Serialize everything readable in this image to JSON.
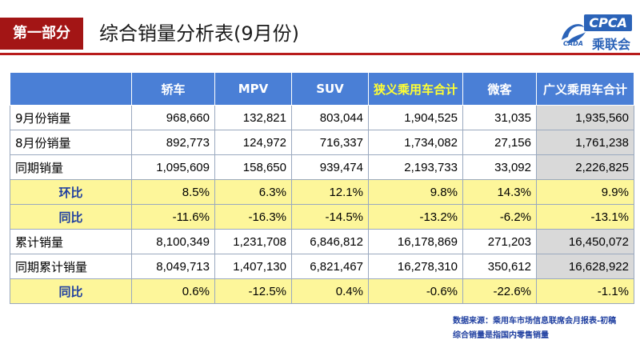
{
  "header": {
    "section": "第一部分",
    "title": "综合销量分析表(9月份)",
    "logo_text": "CPCA",
    "logo_subtext": "乘联会",
    "logo_mini": "CADA"
  },
  "table": {
    "columns": [
      "",
      "轿车",
      "MPV",
      "SUV",
      "狭义乘用车合计",
      "微客",
      "广义乘用车合计"
    ],
    "rows": [
      {
        "label": "9月份销量",
        "values": [
          "968,660",
          "132,821",
          "803,044",
          "1,904,525",
          "31,035",
          "1,935,560"
        ],
        "style": "grey"
      },
      {
        "label": "8月份销量",
        "values": [
          "892,773",
          "124,972",
          "716,337",
          "1,734,082",
          "27,156",
          "1,761,238"
        ],
        "style": "grey"
      },
      {
        "label": "同期销量",
        "values": [
          "1,095,609",
          "158,650",
          "939,474",
          "2,193,733",
          "33,092",
          "2,226,825"
        ],
        "style": "grey"
      },
      {
        "label": "环比",
        "values": [
          "8.5%",
          "6.3%",
          "12.1%",
          "9.8%",
          "14.3%",
          "9.9%"
        ],
        "style": "yellow"
      },
      {
        "label": "同比",
        "values": [
          "-11.6%",
          "-16.3%",
          "-14.5%",
          "-13.2%",
          "-6.2%",
          "-13.1%"
        ],
        "style": "yellow"
      },
      {
        "label": "累计销量",
        "values": [
          "8,100,349",
          "1,231,708",
          "6,846,812",
          "16,178,869",
          "271,203",
          "16,450,072"
        ],
        "style": "grey"
      },
      {
        "label": "同期累计销量",
        "values": [
          "8,049,713",
          "1,407,130",
          "6,821,467",
          "16,278,310",
          "350,612",
          "16,628,922"
        ],
        "style": "grey"
      },
      {
        "label": "同比",
        "values": [
          "0.6%",
          "-12.5%",
          "0.4%",
          "-0.6%",
          "-22.6%",
          "-1.1%"
        ],
        "style": "yellow"
      }
    ]
  },
  "footer": {
    "source_line": "数据来源：乘用车市场信息联席会月报表-初稿",
    "note_line": "综合销量是指国内零售销量"
  },
  "colors": {
    "accent_red": "#a31515",
    "header_blue": "#4a7fd6",
    "highlight_yellow": "#fdf69a",
    "grey_cell": "#d9d9d9"
  }
}
